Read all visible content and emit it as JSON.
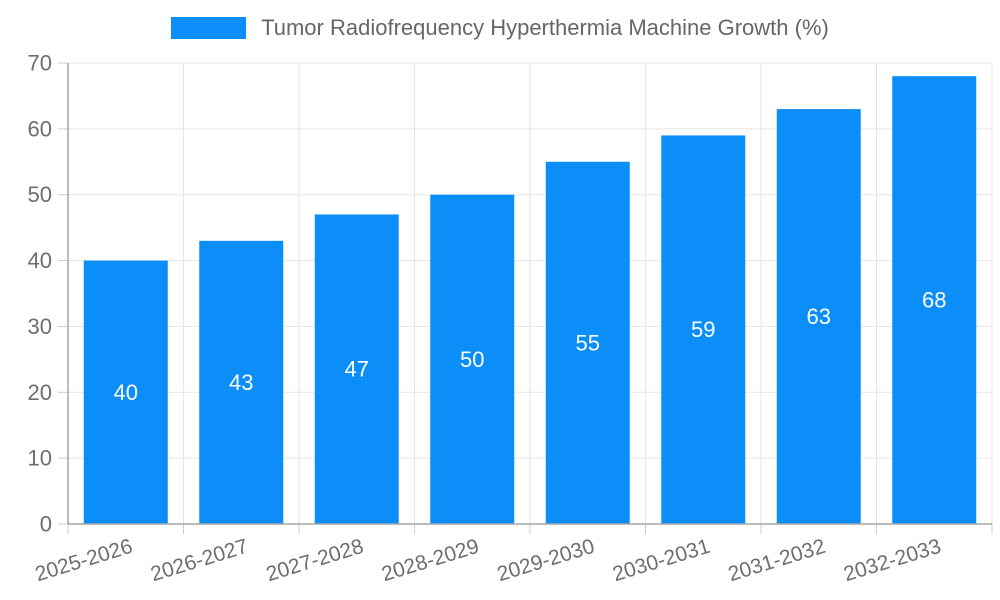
{
  "page": {
    "background_color": "#ffffff"
  },
  "legend": {
    "position": "top-center",
    "swatch_color": "#0b8ef8",
    "label": "Tumor Radiofrequency Hyperthermia Machine Growth (%)"
  },
  "chart_data": {
    "type": "bar",
    "title": "Tumor Radiofrequency Hyperthermia Machine Growth (%)",
    "categories": [
      "2025-2026",
      "2026-2027",
      "2027-2028",
      "2028-2029",
      "2029-2030",
      "2030-2031",
      "2031-2032",
      "2032-2033"
    ],
    "values": [
      40,
      43,
      47,
      50,
      55,
      59,
      63,
      68
    ],
    "value_labels": [
      "40",
      "43",
      "47",
      "50",
      "55",
      "59",
      "63",
      "68"
    ],
    "xlabel": "",
    "ylabel": "",
    "ylim": [
      0,
      70
    ],
    "yticks": [
      0,
      10,
      20,
      30,
      40,
      50,
      60,
      70
    ],
    "grid": "both",
    "legend_position": "top",
    "x_label_rotation_deg": -17,
    "colors": {
      "bar": "#0b8ef8",
      "value_label": "#ffffff",
      "gridline": "#e6e6e6",
      "tick_mark": "#cccccc",
      "axis_line": "#a6a6a6",
      "tick_text": "#6e6e6e",
      "title_text": "#666666"
    }
  }
}
